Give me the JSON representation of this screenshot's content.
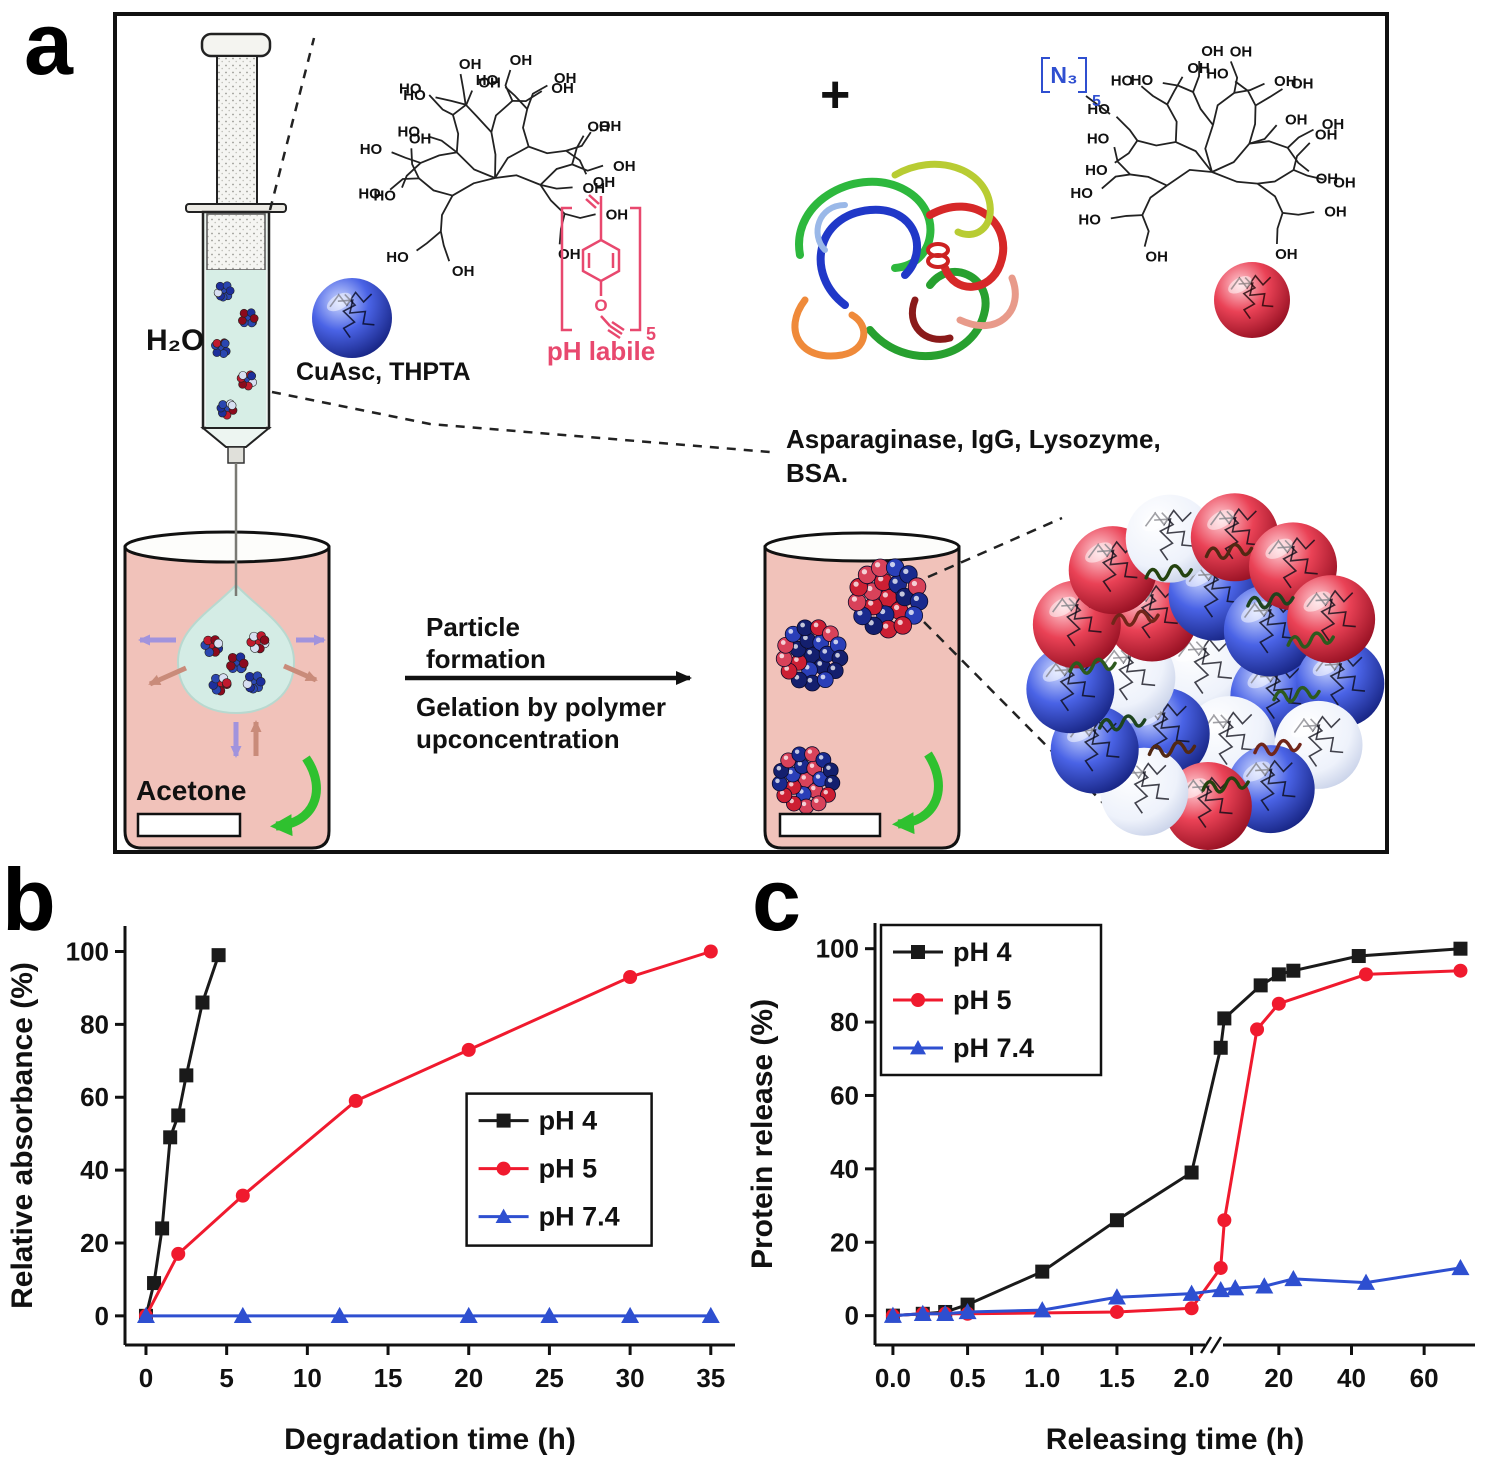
{
  "figure": {
    "panel_labels": {
      "a": "a",
      "b": "b",
      "c": "c"
    }
  },
  "colors": {
    "ph_labile_pink": "#e8486e",
    "azide_blue": "#2f4fd0",
    "beaker_fill": "#f1c2ba",
    "green_arrow": "#2fc12f",
    "series_black": "#1a1a1a",
    "series_red": "#f01a2e",
    "series_blue": "#2e4fd0"
  },
  "panel_a": {
    "h2o": "H₂O",
    "catalyst": "CuAsc, THPTA",
    "ph_labile": "pH labile",
    "repeat_subscript": "5",
    "plus": "+",
    "azide": "N₃",
    "azide_subscript": "5",
    "oh": "OH",
    "ho": "HO",
    "o": "O",
    "protein_lines": [
      "Asparaginase, IgG, Lysozyme,",
      "BSA."
    ],
    "acetone": "Acetone",
    "arrow_top_lines": [
      "Particle",
      "formation"
    ],
    "arrow_bottom_lines": [
      "Gelation by polymer",
      "upconcentration"
    ]
  },
  "chart_data": [
    {
      "id": "degradation",
      "type": "line",
      "title": "",
      "xlabel": "Degradation time (h)",
      "ylabel": "Relative absorbance (%)",
      "xlim": [
        -1.3,
        36.5
      ],
      "ylim": [
        -8,
        107
      ],
      "xticks": [
        0,
        5,
        10,
        15,
        20,
        25,
        30,
        35
      ],
      "yticks": [
        0,
        20,
        40,
        60,
        80,
        100
      ],
      "grid": false,
      "legend_position": "center-right",
      "series": [
        {
          "name": "pH 4",
          "color": "#1a1a1a",
          "marker": "square",
          "x": [
            0,
            0.5,
            1,
            1.5,
            2,
            2.5,
            3.5,
            4.5
          ],
          "y": [
            0,
            9,
            24,
            49,
            55,
            66,
            86,
            99
          ]
        },
        {
          "name": "pH 5",
          "color": "#f01a2e",
          "marker": "circle",
          "x": [
            0,
            2,
            6,
            13,
            20,
            30,
            35
          ],
          "y": [
            0,
            17,
            33,
            59,
            73,
            93,
            100
          ]
        },
        {
          "name": "pH 7.4",
          "color": "#2e4fd0",
          "marker": "triangle",
          "x": [
            0,
            6,
            12,
            20,
            25,
            30,
            35
          ],
          "y": [
            0,
            0,
            0,
            0,
            0,
            0,
            0
          ]
        }
      ]
    },
    {
      "id": "release",
      "type": "line",
      "title": "",
      "xlabel": "Releasing time (h)",
      "ylabel": "Protein release (%)",
      "ylim": [
        -8,
        107
      ],
      "yticks": [
        0,
        20,
        40,
        60,
        80,
        100
      ],
      "x_axis_break": {
        "left_range": [
          -0.12,
          2.15
        ],
        "right_range": [
          2.15,
          74
        ],
        "left_fraction": 0.565,
        "left_ticks": [
          0,
          0.5,
          1.0,
          1.5,
          2.0
        ],
        "left_tick_labels": [
          "0.0",
          "0.5",
          "1.0",
          "1.5",
          "2.0"
        ],
        "right_ticks": [
          20,
          40,
          60
        ],
        "right_tick_labels": [
          "20",
          "40",
          "60"
        ]
      },
      "grid": false,
      "legend_position": "top-left",
      "series": [
        {
          "name": "pH 4",
          "color": "#1a1a1a",
          "marker": "square",
          "x": [
            0,
            0.2,
            0.35,
            0.5,
            1,
            1.5,
            2,
            4,
            5,
            15,
            20,
            24,
            42,
            70
          ],
          "y": [
            0,
            0.5,
            1,
            3,
            12,
            26,
            39,
            73,
            81,
            90,
            93,
            94,
            98,
            100
          ]
        },
        {
          "name": "pH 5",
          "color": "#f01a2e",
          "marker": "circle",
          "x": [
            0,
            0.2,
            0.35,
            0.5,
            1.5,
            2,
            4,
            5,
            14,
            20,
            44,
            70
          ],
          "y": [
            0,
            0.5,
            0.5,
            0.5,
            1,
            2,
            13,
            26,
            78,
            85,
            93,
            94
          ]
        },
        {
          "name": "pH 7.4",
          "color": "#2e4fd0",
          "marker": "triangle",
          "x": [
            0,
            0.2,
            0.35,
            0.5,
            1,
            1.5,
            2,
            4,
            8,
            16,
            24,
            44,
            70
          ],
          "y": [
            0,
            0.5,
            0.5,
            1,
            1.5,
            5,
            6,
            7,
            7.5,
            8,
            10,
            9,
            13
          ]
        }
      ]
    }
  ]
}
